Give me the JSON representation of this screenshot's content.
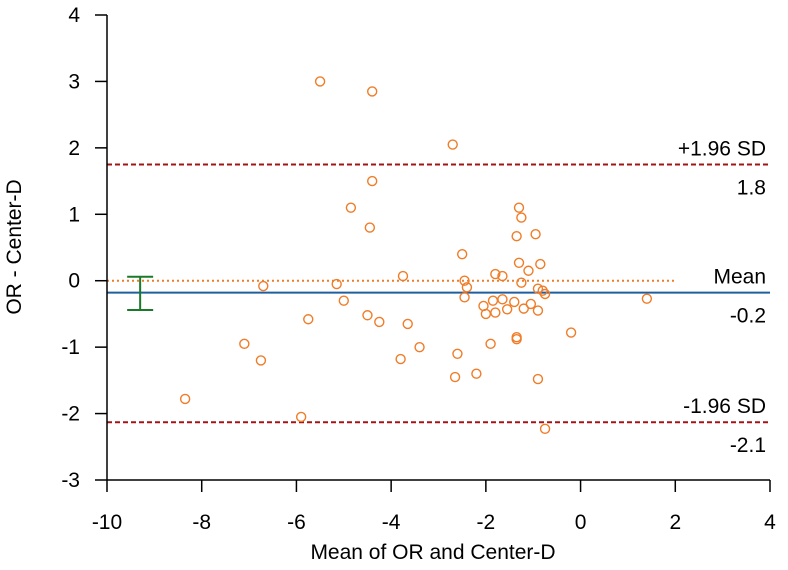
{
  "chart_data": {
    "type": "scatter",
    "title": "",
    "xlabel": "Mean of OR and Center-D",
    "ylabel": "OR - Center-D",
    "xlim": [
      -10,
      4
    ],
    "ylim": [
      -3,
      4
    ],
    "x_ticks": [
      -10,
      -8,
      -6,
      -4,
      -2,
      0,
      2,
      4
    ],
    "y_ticks": [
      -3,
      -2,
      -1,
      0,
      1,
      2,
      3,
      4
    ],
    "x_tick_labels": [
      "-10",
      "-8",
      "-6",
      "-4",
      "-2",
      "0",
      "2",
      "4"
    ],
    "y_tick_labels": [
      "-3",
      "-2",
      "-1",
      "0",
      "1",
      "2",
      "3",
      "4"
    ],
    "grid": false,
    "legend": "none",
    "colors": {
      "points": "#f07c27",
      "zero_line": "#f07c27",
      "mean_line": "#1f5fa0",
      "limit_lines": "#a31515",
      "ci_bar": "#1a7a2a",
      "axis": "#000000"
    },
    "zero_line": {
      "y": 0
    },
    "mean": {
      "value": -0.18,
      "label": "Mean",
      "value_label": "-0.2"
    },
    "upper_limit": {
      "value": 1.75,
      "label": "+1.96 SD",
      "value_label": "1.8"
    },
    "lower_limit": {
      "value": -2.13,
      "label": "-1.96 SD",
      "value_label": "-2.1"
    },
    "mean_ci": {
      "x": -9.3,
      "low": -0.44,
      "high": 0.06
    },
    "points": [
      {
        "x": -5.5,
        "y": 3.0
      },
      {
        "x": -4.4,
        "y": 2.85
      },
      {
        "x": -2.7,
        "y": 2.05
      },
      {
        "x": -4.4,
        "y": 1.5
      },
      {
        "x": -4.85,
        "y": 1.1
      },
      {
        "x": -4.45,
        "y": 0.8
      },
      {
        "x": -1.3,
        "y": 1.1
      },
      {
        "x": -1.25,
        "y": 0.95
      },
      {
        "x": -0.95,
        "y": 0.7
      },
      {
        "x": -1.35,
        "y": 0.67
      },
      {
        "x": -2.5,
        "y": 0.4
      },
      {
        "x": -1.3,
        "y": 0.27
      },
      {
        "x": -0.85,
        "y": 0.25
      },
      {
        "x": -1.1,
        "y": 0.15
      },
      {
        "x": -1.8,
        "y": 0.1
      },
      {
        "x": -1.65,
        "y": 0.07
      },
      {
        "x": -3.75,
        "y": 0.07
      },
      {
        "x": -2.45,
        "y": 0.0
      },
      {
        "x": -1.25,
        "y": -0.03
      },
      {
        "x": -2.4,
        "y": -0.1
      },
      {
        "x": -6.7,
        "y": -0.08
      },
      {
        "x": -5.15,
        "y": -0.05
      },
      {
        "x": -0.9,
        "y": -0.12
      },
      {
        "x": -0.8,
        "y": -0.15
      },
      {
        "x": -0.75,
        "y": -0.2
      },
      {
        "x": -2.45,
        "y": -0.25
      },
      {
        "x": -1.85,
        "y": -0.3
      },
      {
        "x": -1.65,
        "y": -0.28
      },
      {
        "x": -1.4,
        "y": -0.32
      },
      {
        "x": -1.05,
        "y": -0.35
      },
      {
        "x": -2.05,
        "y": -0.38
      },
      {
        "x": -5.0,
        "y": -0.3
      },
      {
        "x": 1.4,
        "y": -0.27
      },
      {
        "x": -1.2,
        "y": -0.42
      },
      {
        "x": -1.55,
        "y": -0.43
      },
      {
        "x": -0.9,
        "y": -0.45
      },
      {
        "x": -2.0,
        "y": -0.5
      },
      {
        "x": -1.8,
        "y": -0.48
      },
      {
        "x": -4.5,
        "y": -0.52
      },
      {
        "x": -5.75,
        "y": -0.58
      },
      {
        "x": -4.25,
        "y": -0.62
      },
      {
        "x": -3.65,
        "y": -0.65
      },
      {
        "x": -0.2,
        "y": -0.78
      },
      {
        "x": -1.35,
        "y": -0.85
      },
      {
        "x": -1.35,
        "y": -0.88
      },
      {
        "x": -1.9,
        "y": -0.95
      },
      {
        "x": -7.1,
        "y": -0.95
      },
      {
        "x": -3.4,
        "y": -1.0
      },
      {
        "x": -2.6,
        "y": -1.1
      },
      {
        "x": -3.8,
        "y": -1.18
      },
      {
        "x": -6.75,
        "y": -1.2
      },
      {
        "x": -2.2,
        "y": -1.4
      },
      {
        "x": -2.65,
        "y": -1.45
      },
      {
        "x": -0.9,
        "y": -1.48
      },
      {
        "x": -8.35,
        "y": -1.78
      },
      {
        "x": -5.9,
        "y": -2.05
      },
      {
        "x": -0.75,
        "y": -2.23
      }
    ]
  }
}
